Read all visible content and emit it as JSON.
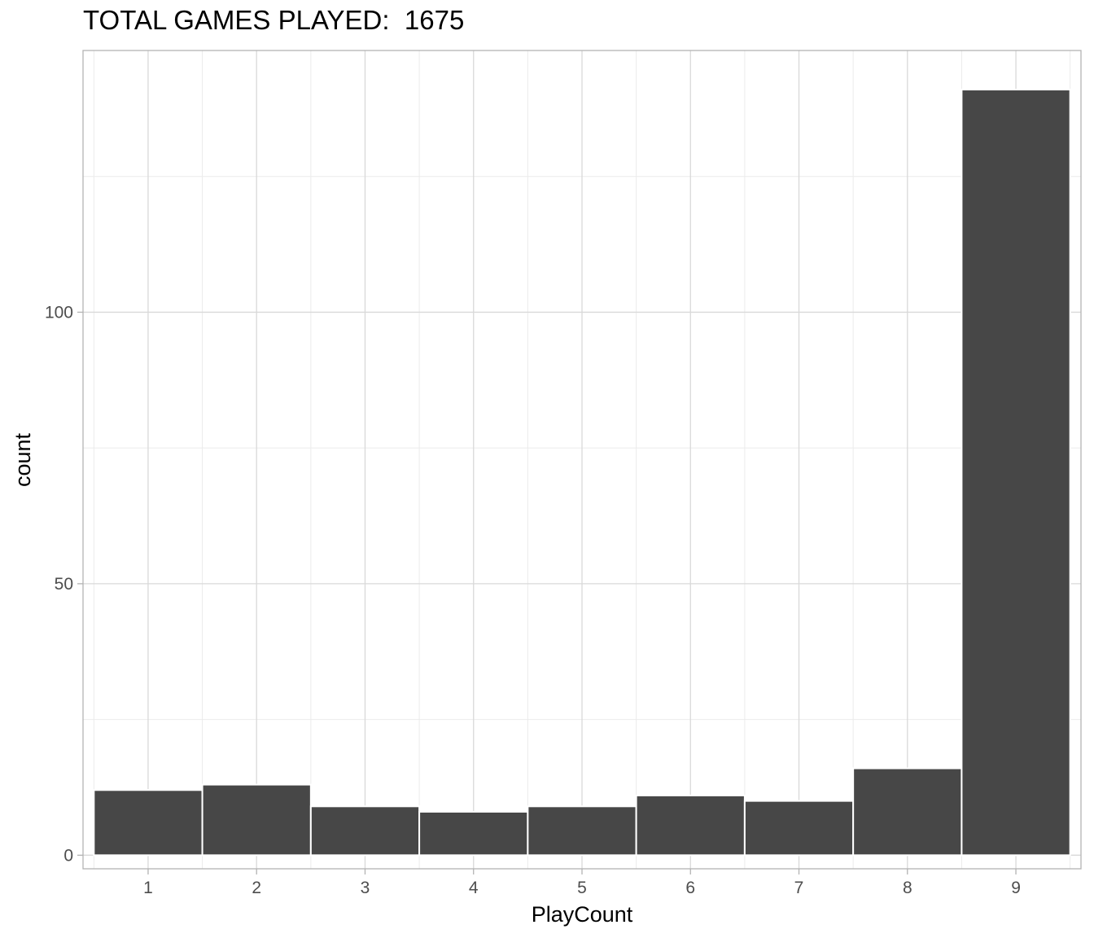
{
  "chart_data": {
    "type": "bar",
    "title": "TOTAL GAMES PLAYED:  1675",
    "xlabel": "PlayCount",
    "ylabel": "count",
    "categories": [
      "1",
      "2",
      "3",
      "4",
      "5",
      "6",
      "7",
      "8",
      "9"
    ],
    "values": [
      12,
      13,
      9,
      8,
      9,
      11,
      10,
      16,
      141
    ],
    "ylim": [
      -2.5,
      148.2
    ],
    "yticks": [
      0,
      50,
      100
    ],
    "grid": true,
    "legend": "none",
    "colors": {
      "bar_fill": "#474747",
      "bar_stroke": "#ffffff",
      "grid_major": "#d9d9d9",
      "grid_minor": "#ebebeb",
      "panel_border": "#b3b3b3"
    }
  }
}
